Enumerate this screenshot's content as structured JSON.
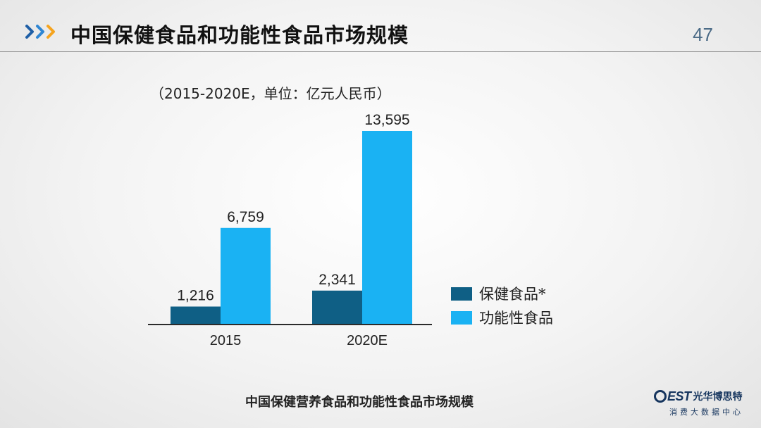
{
  "header": {
    "title": "中国保健食品和功能性食品市场规模",
    "page_number": "47",
    "icon": "triple-chevron-right-icon",
    "chevron_colors": [
      "#1f5fa6",
      "#2f86d3",
      "#f5a41f"
    ]
  },
  "caption": "中国保健营养食品和功能性食品市场规模",
  "logo": {
    "brand": "EST",
    "name_cn": "光华博思特",
    "sub": "消费大数据中心",
    "color": "#16355e"
  },
  "chart_data": {
    "type": "bar",
    "subtitle": "（2015-2020E，单位：亿元人民币）",
    "title": "",
    "xlabel": "",
    "ylabel": "",
    "categories": [
      "2015",
      "2020E"
    ],
    "series": [
      {
        "name": "保健食品*",
        "color": "#0f5f85",
        "values": [
          1216,
          2341
        ],
        "labels": [
          "1,216",
          "2,341"
        ]
      },
      {
        "name": "功能性食品",
        "color": "#1ab2f3",
        "values": [
          6759,
          13595
        ],
        "labels": [
          "6,759",
          "13,595"
        ]
      }
    ],
    "ylim": [
      0,
      13595
    ],
    "grid": false,
    "legend_position": "right"
  }
}
